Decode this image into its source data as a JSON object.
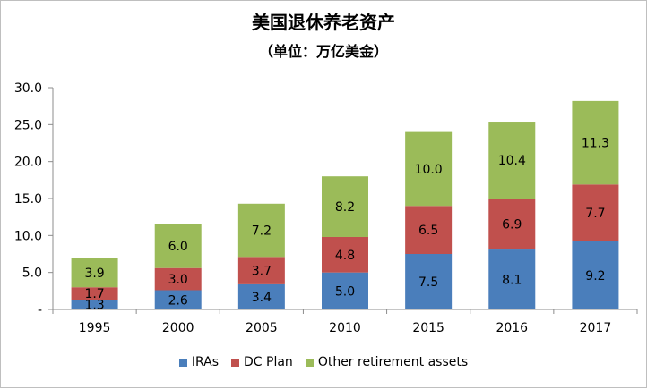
{
  "chart_data": {
    "type": "bar",
    "stacked": true,
    "title": "美国退休养老资产",
    "subtitle": "（单位：万亿美金）",
    "categories": [
      "1995",
      "2000",
      "2005",
      "2010",
      "2015",
      "2016",
      "2017"
    ],
    "series": [
      {
        "name": "IRAs",
        "color": "#4a7ebb",
        "values": [
          1.3,
          2.6,
          3.4,
          5.0,
          7.5,
          8.1,
          9.2
        ]
      },
      {
        "name": "DC Plan",
        "color": "#c0504d",
        "values": [
          1.7,
          3.0,
          3.7,
          4.8,
          6.5,
          6.9,
          7.7
        ]
      },
      {
        "name": "Other retirement assets",
        "color": "#9bbb59",
        "values": [
          3.9,
          6.0,
          7.2,
          8.2,
          10.0,
          10.4,
          11.3
        ]
      }
    ],
    "data_labels": [
      [
        "1.3",
        "2.6",
        "3.4",
        "5.0",
        "7.5",
        "8.1",
        "9.2"
      ],
      [
        "1.7",
        "3.0",
        "3.7",
        "4.8",
        "6.5",
        "6.9",
        "7.7"
      ],
      [
        "3.9",
        "6.0",
        "7.2",
        "8.2",
        "10.0",
        "10.4",
        "11.3"
      ]
    ],
    "y_ticks": [
      {
        "value": 0,
        "label": "-"
      },
      {
        "value": 5,
        "label": "5.0"
      },
      {
        "value": 10,
        "label": "10.0"
      },
      {
        "value": 15,
        "label": "15.0"
      },
      {
        "value": 20,
        "label": "20.0"
      },
      {
        "value": 25,
        "label": "25.0"
      },
      {
        "value": 30,
        "label": "30.0"
      }
    ],
    "ylim": [
      0,
      30
    ],
    "grid": false,
    "legend_position": "bottom"
  }
}
